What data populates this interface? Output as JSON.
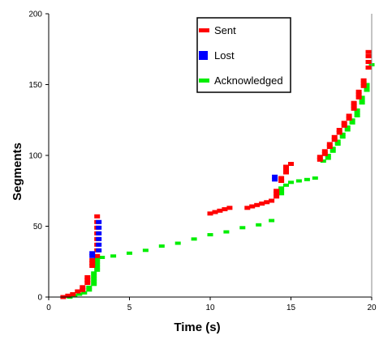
{
  "chart_data": {
    "type": "scatter",
    "title": "",
    "xlabel": "Time (s)",
    "ylabel": "Segments",
    "xlim": [
      0,
      20
    ],
    "ylim": [
      0,
      200
    ],
    "xticks": [
      0,
      5,
      10,
      15,
      20
    ],
    "yticks": [
      0,
      50,
      100,
      150,
      200
    ],
    "grid": false,
    "legend_position": "top-right",
    "colors": {
      "sent": "#ff0000",
      "lost": "#0000ff",
      "acknowledged": "#00ee00"
    },
    "legend": [
      {
        "key": "sent",
        "label": "Sent"
      },
      {
        "key": "lost",
        "label": "Lost"
      },
      {
        "key": "acknowledged",
        "label": "Acknowledged"
      }
    ],
    "series": [
      {
        "key": "sent",
        "name": "Sent",
        "points": [
          [
            0.9,
            0
          ],
          [
            1.2,
            1
          ],
          [
            1.5,
            2
          ],
          [
            1.8,
            4
          ],
          [
            2.1,
            5
          ],
          [
            2.1,
            7
          ],
          [
            2.4,
            10
          ],
          [
            2.4,
            12
          ],
          [
            2.4,
            14
          ],
          [
            2.7,
            22
          ],
          [
            2.7,
            24
          ],
          [
            2.7,
            26
          ],
          [
            3.0,
            29
          ],
          [
            3.0,
            33
          ],
          [
            3.0,
            37
          ],
          [
            3.0,
            41
          ],
          [
            3.0,
            45
          ],
          [
            3.0,
            49
          ],
          [
            3.0,
            53
          ],
          [
            3.0,
            57
          ],
          [
            10.0,
            59
          ],
          [
            10.3,
            60
          ],
          [
            10.6,
            61
          ],
          [
            10.9,
            62
          ],
          [
            11.2,
            63
          ],
          [
            12.3,
            63
          ],
          [
            12.6,
            64
          ],
          [
            12.9,
            65
          ],
          [
            13.2,
            66
          ],
          [
            13.5,
            67
          ],
          [
            13.8,
            68
          ],
          [
            14.1,
            71
          ],
          [
            14.1,
            73
          ],
          [
            14.1,
            75
          ],
          [
            14.4,
            82
          ],
          [
            14.4,
            84
          ],
          [
            14.7,
            88
          ],
          [
            14.7,
            90
          ],
          [
            14.7,
            92
          ],
          [
            15.0,
            94
          ],
          [
            16.8,
            97
          ],
          [
            16.8,
            99
          ],
          [
            17.1,
            101
          ],
          [
            17.1,
            103
          ],
          [
            17.4,
            106
          ],
          [
            17.4,
            108
          ],
          [
            17.7,
            111
          ],
          [
            17.7,
            113
          ],
          [
            18.0,
            116
          ],
          [
            18.0,
            118
          ],
          [
            18.3,
            121
          ],
          [
            18.3,
            123
          ],
          [
            18.6,
            126
          ],
          [
            18.6,
            128
          ],
          [
            18.9,
            133
          ],
          [
            18.9,
            135
          ],
          [
            18.9,
            137
          ],
          [
            19.2,
            141
          ],
          [
            19.2,
            143
          ],
          [
            19.2,
            145
          ],
          [
            19.5,
            149
          ],
          [
            19.5,
            151
          ],
          [
            19.5,
            153
          ],
          [
            19.8,
            162
          ],
          [
            19.8,
            166
          ],
          [
            19.8,
            170
          ],
          [
            19.8,
            173
          ]
        ]
      },
      {
        "key": "lost",
        "name": "Lost",
        "points": [
          [
            2.7,
            29
          ],
          [
            2.7,
            31
          ],
          [
            3.1,
            33
          ],
          [
            3.1,
            37
          ],
          [
            3.1,
            41
          ],
          [
            3.1,
            45
          ],
          [
            3.1,
            49
          ],
          [
            3.1,
            53
          ],
          [
            14.0,
            83
          ],
          [
            14.0,
            85
          ]
        ]
      },
      {
        "key": "acknowledged",
        "name": "Acknowledged",
        "points": [
          [
            1.3,
            0
          ],
          [
            1.6,
            1
          ],
          [
            1.9,
            2
          ],
          [
            2.2,
            3
          ],
          [
            2.5,
            5
          ],
          [
            2.5,
            7
          ],
          [
            2.8,
            9
          ],
          [
            2.8,
            11
          ],
          [
            2.8,
            13
          ],
          [
            2.8,
            15
          ],
          [
            2.8,
            17
          ],
          [
            3.0,
            19
          ],
          [
            3.0,
            21
          ],
          [
            3.0,
            23
          ],
          [
            3.0,
            25
          ],
          [
            3.0,
            27
          ],
          [
            3.3,
            28
          ],
          [
            4.0,
            29
          ],
          [
            5.0,
            31
          ],
          [
            6.0,
            33
          ],
          [
            7.0,
            36
          ],
          [
            8.0,
            38
          ],
          [
            9.0,
            41
          ],
          [
            10.0,
            44
          ],
          [
            11.0,
            46
          ],
          [
            12.0,
            49
          ],
          [
            13.0,
            51
          ],
          [
            13.8,
            54
          ],
          [
            14.4,
            73
          ],
          [
            14.4,
            75
          ],
          [
            14.4,
            77
          ],
          [
            14.7,
            79
          ],
          [
            15.0,
            81
          ],
          [
            15.5,
            82
          ],
          [
            16.0,
            83
          ],
          [
            16.5,
            84
          ],
          [
            17.0,
            96
          ],
          [
            17.3,
            98
          ],
          [
            17.3,
            100
          ],
          [
            17.6,
            103
          ],
          [
            17.6,
            105
          ],
          [
            17.9,
            108
          ],
          [
            17.9,
            110
          ],
          [
            18.2,
            113
          ],
          [
            18.2,
            115
          ],
          [
            18.5,
            118
          ],
          [
            18.5,
            120
          ],
          [
            18.8,
            123
          ],
          [
            18.8,
            125
          ],
          [
            19.1,
            128
          ],
          [
            19.1,
            130
          ],
          [
            19.1,
            132
          ],
          [
            19.4,
            137
          ],
          [
            19.4,
            139
          ],
          [
            19.4,
            141
          ],
          [
            19.7,
            146
          ],
          [
            19.7,
            148
          ],
          [
            19.7,
            150
          ],
          [
            20.0,
            164
          ]
        ]
      }
    ]
  }
}
